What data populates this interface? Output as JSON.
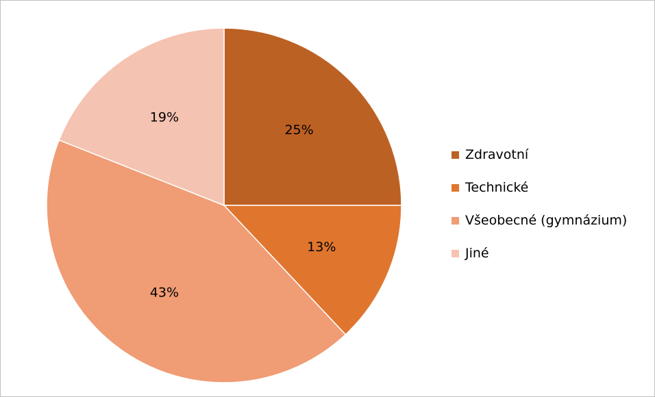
{
  "chart_data": {
    "type": "pie",
    "title": "",
    "legend_position": "right",
    "slices": [
      {
        "label": "Zdravotní",
        "value": 25,
        "value_label": "25%",
        "color": "#bc6124"
      },
      {
        "label": "Technické",
        "value": 13,
        "value_label": "13%",
        "color": "#e0762e"
      },
      {
        "label": "Všeobecné (gymnázium)",
        "value": 43,
        "value_label": "43%",
        "color": "#f09c74"
      },
      {
        "label": "Jiné",
        "value": 19,
        "value_label": "19%",
        "color": "#f5c3b1"
      }
    ]
  }
}
